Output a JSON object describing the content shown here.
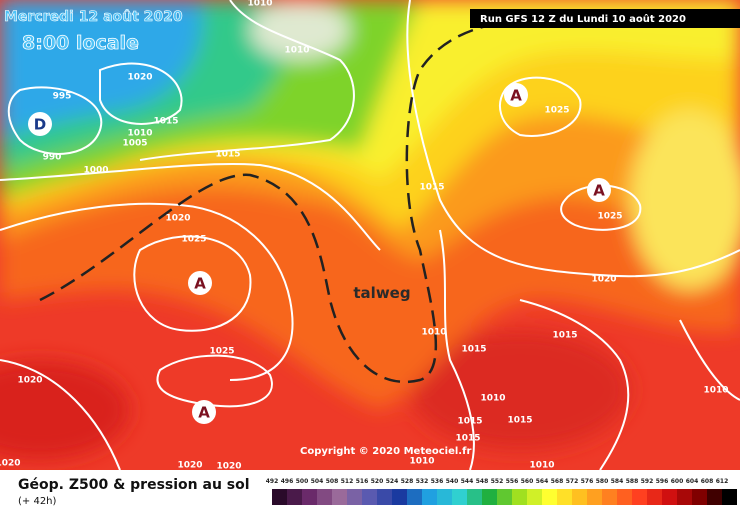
{
  "header": {
    "date": "Mercredi 12 août 2020",
    "time": "8:00 locale",
    "run": "Run GFS 12 Z du Lundi 10 août 2020"
  },
  "annotations": {
    "trough": "talweg",
    "copyright": "Copyright © 2020 Meteociel.fr"
  },
  "centers": [
    "D",
    "A",
    "A",
    "A",
    "A"
  ],
  "isobar_labels": [
    "1010",
    "1010",
    "1020",
    "995",
    "1015",
    "1010",
    "1005",
    "990",
    "1000",
    "1015",
    "1015",
    "1025",
    "1025",
    "1020",
    "1025",
    "1020",
    "1015",
    "1010",
    "1015",
    "1025",
    "1020",
    "1010",
    "1010",
    "1015",
    "1015",
    "1015",
    "1010",
    "1010",
    "1020",
    "1020",
    "1020"
  ],
  "legend": {
    "title": "Géop. Z500 & pression au sol",
    "lead": "(+ 42h)",
    "scale": [
      492,
      496,
      500,
      504,
      508,
      512,
      516,
      520,
      524,
      528,
      532,
      536,
      540,
      544,
      548,
      552,
      556,
      560,
      564,
      568,
      572,
      576,
      580,
      584,
      588,
      592,
      596,
      600,
      604,
      608,
      612
    ]
  }
}
